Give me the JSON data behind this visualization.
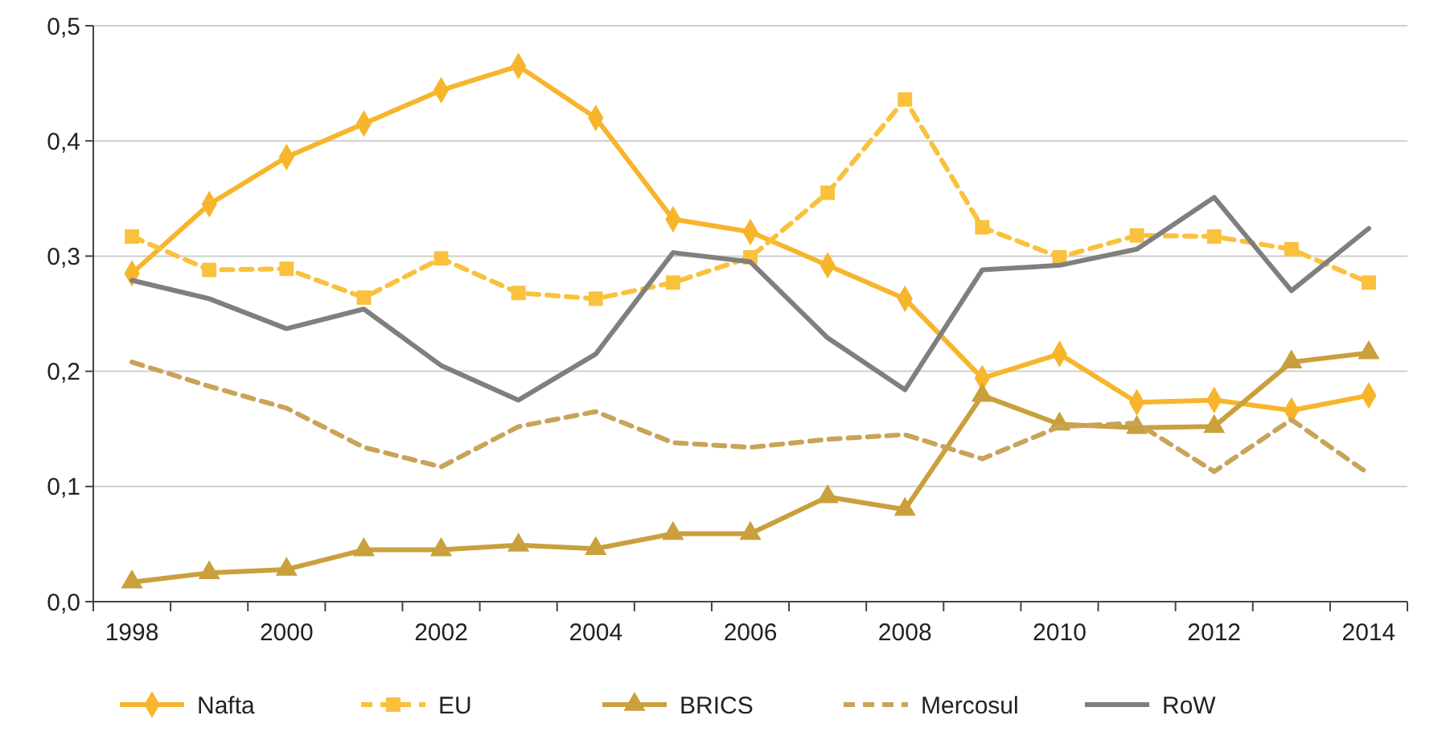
{
  "chart_data": {
    "type": "line",
    "categories": [
      "1998",
      null,
      "2000",
      null,
      "2002",
      null,
      "2004",
      null,
      "2006",
      null,
      "2008",
      null,
      "2010",
      null,
      "2012",
      null,
      "2014"
    ],
    "ylim": [
      0,
      0.5
    ],
    "yticks": [
      {
        "value": 0,
        "label": "0,0"
      },
      {
        "value": 0.1,
        "label": "0,1"
      },
      {
        "value": 0.2,
        "label": "0,2"
      },
      {
        "value": 0.3,
        "label": "0,3"
      },
      {
        "value": 0.4,
        "label": "0,4"
      },
      {
        "value": 0.5,
        "label": "0,5"
      }
    ],
    "grid": "y",
    "legend": "bottom",
    "series": [
      {
        "name": "Nafta",
        "color": "#f7b52c",
        "marker": "diamond",
        "line_style": "solid",
        "values": [
          0.285,
          0.345,
          0.386,
          0.415,
          0.444,
          0.465,
          0.42,
          0.332,
          0.321,
          0.292,
          0.263,
          0.194,
          0.215,
          0.173,
          0.175,
          0.166,
          0.179
        ]
      },
      {
        "name": "EU",
        "color": "#f9c13c",
        "marker": "square",
        "line_style": "dashed",
        "values": [
          0.317,
          0.288,
          0.289,
          0.264,
          0.298,
          0.268,
          0.263,
          0.277,
          0.299,
          0.355,
          0.436,
          0.325,
          0.299,
          0.318,
          0.317,
          0.306,
          0.277
        ]
      },
      {
        "name": "BRICS",
        "color": "#c9a03c",
        "marker": "triangle",
        "line_style": "solid",
        "values": [
          0.017,
          0.025,
          0.028,
          0.045,
          0.045,
          0.049,
          0.046,
          0.059,
          0.059,
          0.091,
          0.08,
          0.179,
          0.154,
          0.151,
          0.152,
          0.208,
          0.216
        ]
      },
      {
        "name": "Mercosul",
        "color": "#c9a357",
        "marker": "none",
        "line_style": "dashed",
        "values": [
          0.208,
          0.187,
          0.168,
          0.134,
          0.117,
          0.152,
          0.165,
          0.138,
          0.134,
          0.141,
          0.145,
          0.124,
          0.152,
          0.155,
          0.113,
          0.158,
          0.111
        ]
      },
      {
        "name": "RoW",
        "color": "#7f7f7f",
        "marker": "none",
        "line_style": "solid",
        "values": [
          0.279,
          0.263,
          0.237,
          0.254,
          0.205,
          0.175,
          0.215,
          0.303,
          0.295,
          0.229,
          0.184,
          0.288,
          0.292,
          0.306,
          0.351,
          0.27,
          0.324
        ]
      }
    ]
  }
}
